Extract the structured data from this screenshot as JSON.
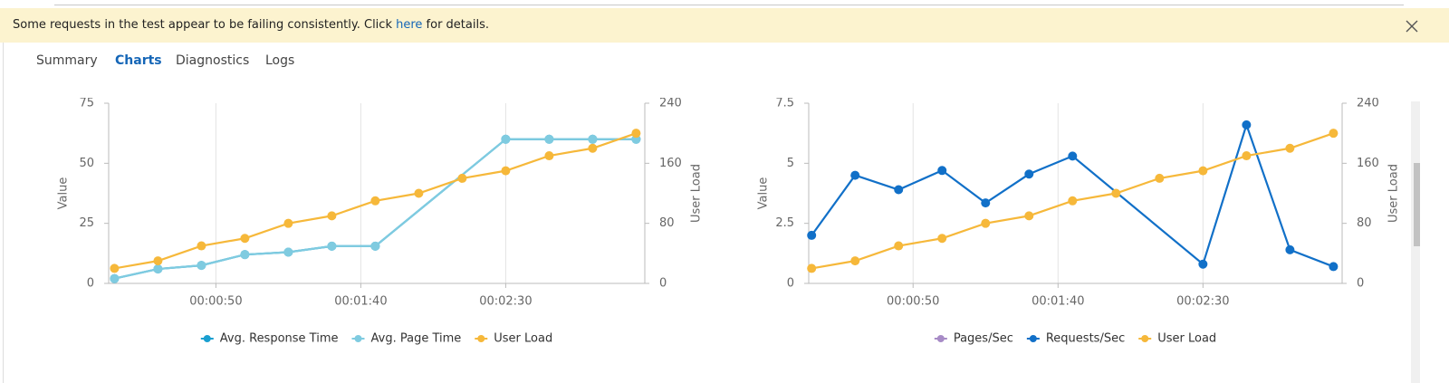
{
  "banner": {
    "text_before": "Some requests in the test appear to be failing consistently. Click ",
    "link": "here",
    "text_after": " for details."
  },
  "tabs": [
    "Summary",
    "Charts",
    "Diagnostics",
    "Logs"
  ],
  "selected_tab": 1,
  "chart_data": [
    {
      "type": "line",
      "y_label": "Value",
      "y2_label": "User Load",
      "grid": true,
      "legend": "bottom",
      "xlim": [
        13,
        198
      ],
      "xticks": [
        {
          "value": 50,
          "label": "00:00:50"
        },
        {
          "value": 100,
          "label": "00:01:40"
        },
        {
          "value": 150,
          "label": "00:02:30"
        }
      ],
      "ylim": [
        0,
        75
      ],
      "yticks": [
        0,
        25,
        50,
        75
      ],
      "y2lim": [
        0,
        240
      ],
      "y2ticks": [
        0,
        80,
        160,
        240
      ],
      "series": [
        {
          "name": "Avg. Response Time",
          "color": "#1a9fd0",
          "x": [
            15,
            30,
            45,
            60,
            75,
            90,
            105,
            150,
            165,
            180,
            195
          ],
          "values": [
            2,
            6,
            7.5,
            12,
            13,
            15.5,
            15.5,
            60,
            60,
            60,
            60
          ]
        },
        {
          "name": "Avg. Page Time",
          "color": "#7fcbe0",
          "x": [
            15,
            30,
            45,
            60,
            75,
            90,
            105,
            150,
            165,
            180,
            195
          ],
          "values": [
            2,
            6,
            7.5,
            12,
            13,
            15.5,
            15.5,
            60,
            60,
            60,
            60
          ]
        },
        {
          "name": "User Load",
          "color": "#f6b83a",
          "axis": "y2",
          "x": [
            15,
            30,
            45,
            60,
            75,
            90,
            105,
            120,
            135,
            150,
            165,
            180,
            195
          ],
          "values": [
            20,
            30,
            50,
            60,
            80,
            90,
            110,
            120,
            140,
            150,
            170,
            180,
            200
          ]
        }
      ]
    },
    {
      "type": "line",
      "y_label": "Value",
      "y2_label": "User Load",
      "grid": true,
      "legend": "bottom",
      "xlim": [
        14,
        198
      ],
      "xticks": [
        {
          "value": 50,
          "label": "00:00:50"
        },
        {
          "value": 100,
          "label": "00:01:40"
        },
        {
          "value": 150,
          "label": "00:02:30"
        }
      ],
      "ylim": [
        0,
        7.5
      ],
      "yticks": [
        0,
        2.5,
        5,
        7.5
      ],
      "y2lim": [
        0,
        240
      ],
      "y2ticks": [
        0,
        80,
        160,
        240
      ],
      "series": [
        {
          "name": "Pages/Sec",
          "color": "#a78bc6",
          "x": [],
          "values": []
        },
        {
          "name": "Requests/Sec",
          "color": "#1170c8",
          "x": [
            15,
            30,
            45,
            60,
            75,
            90,
            105,
            150,
            165,
            180,
            195
          ],
          "values": [
            2,
            4.5,
            3.9,
            4.7,
            3.35,
            4.55,
            5.3,
            0.8,
            6.6,
            1.4,
            0.7
          ]
        },
        {
          "name": "User Load",
          "color": "#f6b83a",
          "axis": "y2",
          "x": [
            15,
            30,
            45,
            60,
            75,
            90,
            105,
            120,
            135,
            150,
            165,
            180,
            195
          ],
          "values": [
            20,
            30,
            50,
            60,
            80,
            90,
            110,
            120,
            140,
            150,
            170,
            180,
            200
          ]
        }
      ]
    }
  ]
}
